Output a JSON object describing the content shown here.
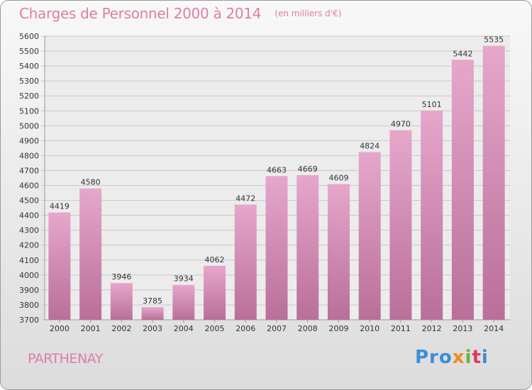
{
  "chart_data": {
    "type": "bar",
    "title": "Charges de Personnel 2000 à 2014",
    "subtitle": "(en milliers d'€)",
    "categories": [
      "2000",
      "2001",
      "2002",
      "2003",
      "2004",
      "2005",
      "2006",
      "2007",
      "2008",
      "2009",
      "2010",
      "2011",
      "2012",
      "2013",
      "2014"
    ],
    "values": [
      4419,
      4580,
      3946,
      3785,
      3934,
      4062,
      4472,
      4663,
      4669,
      4609,
      4824,
      4970,
      5101,
      5442,
      5535
    ],
    "yticks": [
      3700,
      3800,
      3900,
      4000,
      4100,
      4200,
      4300,
      4400,
      4500,
      4600,
      4700,
      4800,
      4900,
      5000,
      5100,
      5200,
      5300,
      5400,
      5500,
      5600
    ],
    "ylim": [
      3700,
      5600
    ],
    "xlabel": "",
    "ylabel": "",
    "grid": true,
    "colors": {
      "bar_top": "#e6a7cb",
      "bar_bottom": "#b96f98",
      "grid": "#c8c8c8",
      "text": "#333333",
      "accent": "#e07ca8"
    }
  },
  "footer": {
    "location": "PARTHENAY",
    "logo": {
      "p1": "Pro",
      "p2": "x",
      "p3": "i",
      "p4": "t",
      "p5": "i"
    }
  }
}
